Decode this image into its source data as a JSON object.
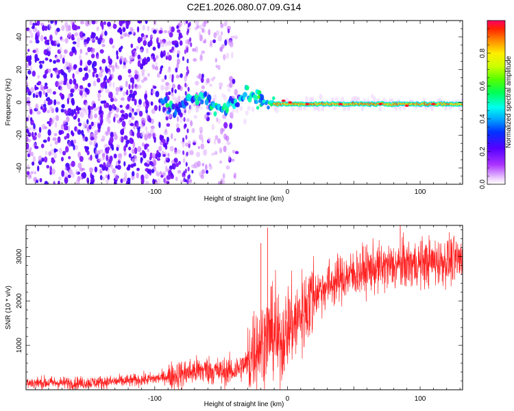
{
  "figure": {
    "title": "C2E1.2026.080.07.09.G14"
  },
  "colors": {
    "snr_line": "#ff2020",
    "axis": "#000000",
    "background": "#ffffff"
  },
  "chart_data": [
    {
      "type": "heatmap",
      "name": "spectrogram",
      "xlabel": "Height of straight line (km)",
      "ylabel": "Frequency (Hz)",
      "xlim": [
        -197,
        132
      ],
      "ylim": [
        -50,
        50
      ],
      "xticks": [
        -100,
        0,
        100
      ],
      "yticks": [
        -40,
        -20,
        0,
        20,
        40
      ],
      "colorbar": {
        "label": "Normalized spectral amplitude",
        "range": [
          0,
          1
        ],
        "ticks": [
          0.0,
          0.2,
          0.4,
          0.6,
          0.8
        ]
      },
      "features": {
        "carrier_frequency_hz": -1,
        "noise_region_x_range": [
          -197,
          -38
        ],
        "signal_onset_x": -80,
        "strong_carrier_from_x": -10
      }
    },
    {
      "type": "line",
      "name": "snr",
      "xlabel": "Height of straight line (km)",
      "ylabel": "SNR (10 * v/v)",
      "xlim": [
        -197,
        132
      ],
      "ylim": [
        0,
        3700
      ],
      "xticks": [
        -100,
        0,
        100
      ],
      "yticks": [
        1000,
        2000,
        3000
      ],
      "series": [
        {
          "name": "SNR",
          "x": [
            -197,
            -180,
            -160,
            -140,
            -120,
            -100,
            -90,
            -80,
            -70,
            -60,
            -50,
            -40,
            -30,
            -25,
            -20,
            -15,
            -10,
            -5,
            0,
            5,
            10,
            15,
            20,
            30,
            40,
            50,
            60,
            70,
            80,
            90,
            100,
            110,
            120,
            132
          ],
          "y": [
            150,
            160,
            150,
            170,
            200,
            250,
            300,
            350,
            420,
            450,
            400,
            430,
            600,
            950,
            1050,
            1200,
            1300,
            1000,
            1450,
            1500,
            1650,
            1900,
            2150,
            2350,
            2500,
            2600,
            2700,
            2750,
            2780,
            2820,
            2850,
            2880,
            2900,
            2920
          ]
        }
      ],
      "spikes": [
        {
          "x": -20,
          "y": 3300
        },
        {
          "x": -15,
          "y": 3650
        },
        {
          "x": 85,
          "y": 3700
        }
      ]
    }
  ]
}
